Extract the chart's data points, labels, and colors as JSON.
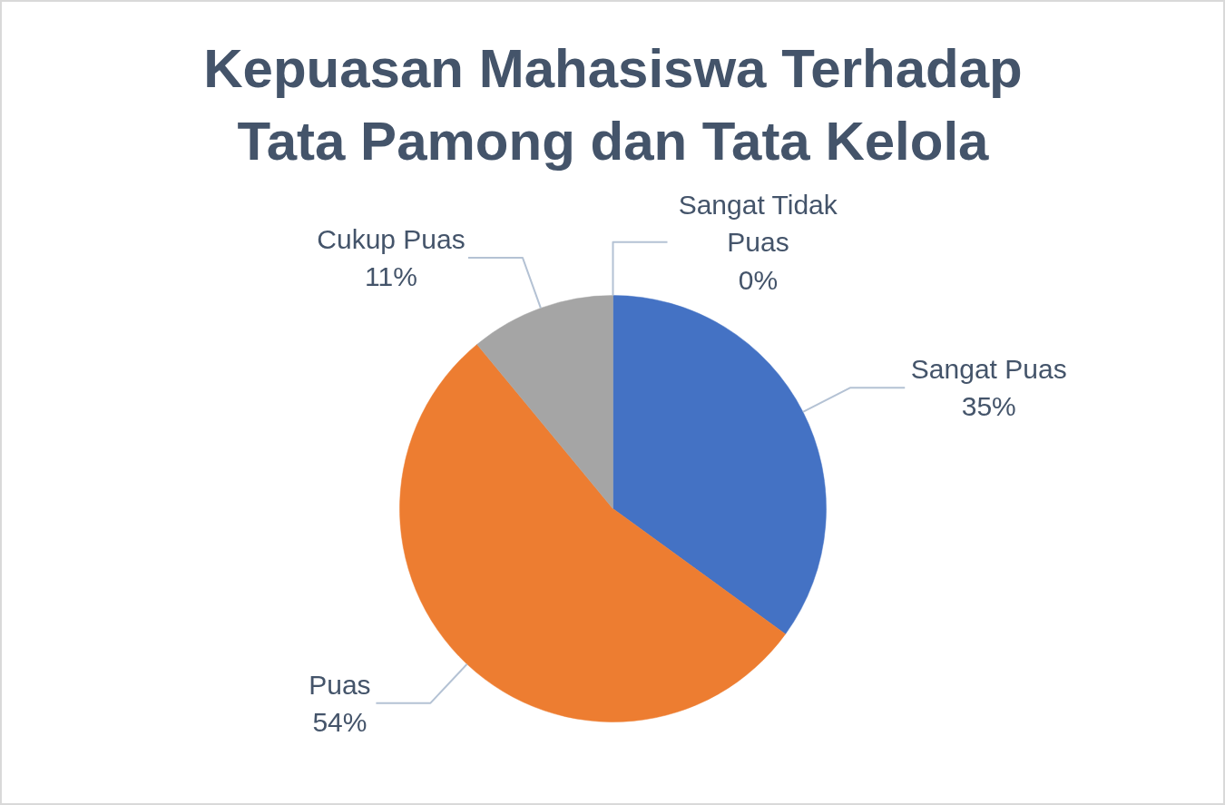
{
  "chart_data": {
    "type": "pie",
    "title": "Kepuasan Mahasiswa Terhadap\nTata Pamong dan Tata Kelola",
    "categories": [
      "Sangat Puas",
      "Puas",
      "Cukup Puas",
      "Sangat Tidak Puas"
    ],
    "values": [
      35,
      54,
      11,
      0
    ],
    "colors": [
      "#4472c4",
      "#ed7d31",
      "#a5a5a5",
      "#ffc000"
    ],
    "value_labels": [
      "35%",
      "54%",
      "11%",
      "0%"
    ]
  }
}
